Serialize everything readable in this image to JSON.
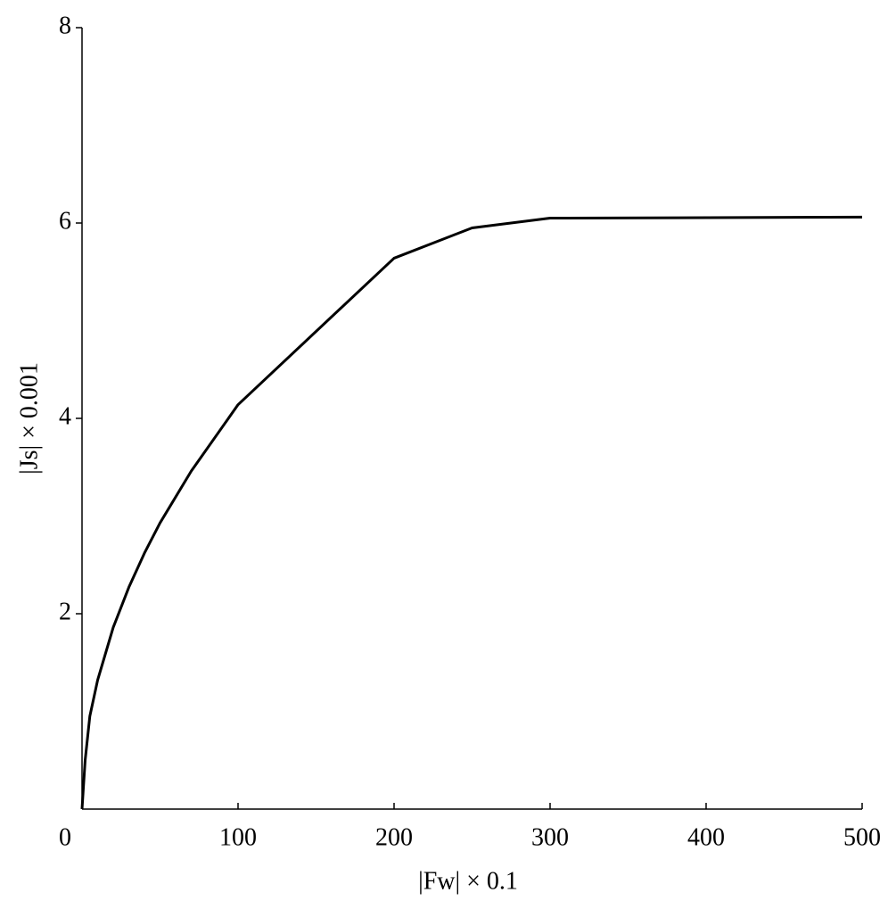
{
  "chart_data": {
    "type": "line",
    "xlabel": "|Fw| × 0.1",
    "ylabel": "|Js| × 0.001",
    "x": [
      0,
      2,
      5,
      10,
      20,
      30,
      40,
      50,
      70,
      100,
      200,
      250,
      300,
      500
    ],
    "series": [
      {
        "color": "#000000",
        "values": [
          0,
          0.5,
          0.95,
          1.32,
          1.86,
          2.27,
          2.62,
          2.93,
          3.46,
          4.14,
          5.64,
          5.95,
          6.05,
          6.06
        ]
      }
    ],
    "xlim": [
      0,
      500
    ],
    "xticks": [
      0,
      100,
      200,
      300,
      400,
      500
    ],
    "ylim": [
      0,
      8
    ],
    "yticks": [
      2,
      4,
      6,
      8
    ]
  }
}
